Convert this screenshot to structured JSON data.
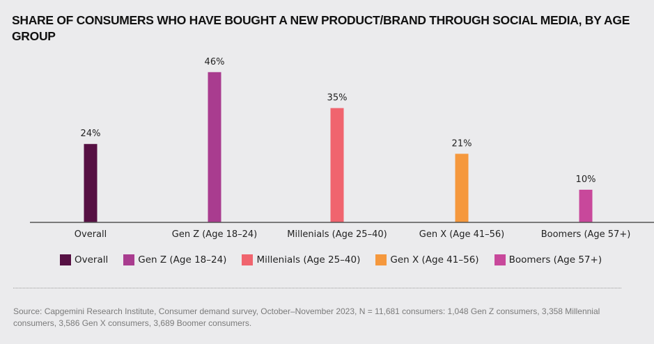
{
  "chart_data": {
    "type": "bar",
    "title": "SHARE OF CONSUMERS WHO HAVE BOUGHT A NEW PRODUCT/BRAND THROUGH SOCIAL MEDIA, BY AGE GROUP",
    "categories": [
      "Overall",
      "Gen Z (Age 18–24)",
      "Millenials (Age 25–40)",
      "Gen X (Age 41–56)",
      "Boomers (Age 57+)"
    ],
    "values": [
      24,
      46,
      35,
      21,
      10
    ],
    "value_labels": [
      "24%",
      "46%",
      "35%",
      "21%",
      "10%"
    ],
    "colors": [
      "#561043",
      "#a93c8f",
      "#f0646e",
      "#f5983d",
      "#c8489b"
    ],
    "xlabel": "",
    "ylabel": "",
    "ylim": [
      0,
      46
    ],
    "grid": false,
    "legend": {
      "placement": "bottom",
      "entries": [
        "Overall",
        "Gen Z (Age 18–24)",
        "Millenials (Age 25–40)",
        "Gen X (Age 41–56)",
        "Boomers (Age 57+)"
      ]
    }
  },
  "source": "Source: Capgemini Research Institute, Consumer demand survey, October–November 2023, N = 11,681 consumers: 1,048 Gen Z consumers, 3,358 Millennial consumers, 3,586 Gen X consumers, 3,689 Boomer consumers."
}
